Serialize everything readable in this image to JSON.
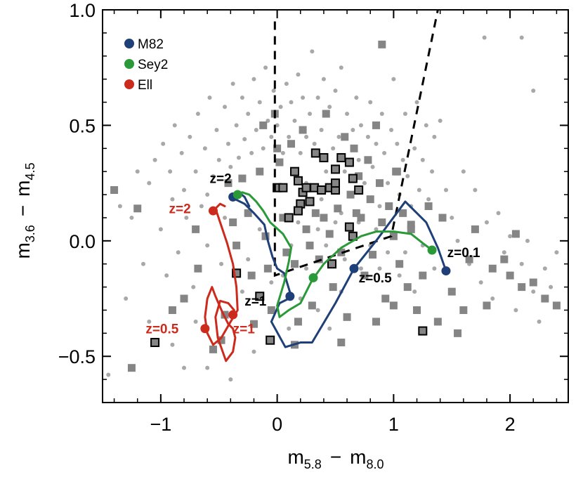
{
  "chart_data": {
    "type": "scatter",
    "title": "",
    "xlabel": {
      "base1": "m",
      "sub1": "5.8",
      "sep": "−",
      "base2": "m",
      "sub2": "8.0"
    },
    "ylabel": {
      "base1": "m",
      "sub1": "3.6",
      "sep": "−",
      "base2": "m",
      "sub2": "4.5"
    },
    "xlim": [
      -1.5,
      2.5
    ],
    "ylim": [
      -0.7,
      1.0
    ],
    "xticks": [
      {
        "v": -1,
        "label": "−1"
      },
      {
        "v": 0,
        "label": "0"
      },
      {
        "v": 1,
        "label": "1"
      },
      {
        "v": 2,
        "label": "2"
      }
    ],
    "yticks": [
      {
        "v": -0.5,
        "label": "−0.5"
      },
      {
        "v": 0.0,
        "label": "0.0"
      },
      {
        "v": 0.5,
        "label": "0.5"
      },
      {
        "v": 1.0,
        "label": "1.0"
      }
    ],
    "colors": {
      "M82": "#1f3f78",
      "Sey2": "#2a9a38",
      "Ell": "#cc2a1c",
      "dots": "#a8a8a8",
      "squares": "#858585",
      "outlined": "#858585"
    },
    "legend": {
      "placement": "top-left",
      "entries": [
        {
          "key": "M82",
          "label": "M82"
        },
        {
          "key": "Sey2",
          "label": "Sey2"
        },
        {
          "key": "Ell",
          "label": "Ell"
        }
      ]
    },
    "wedge": [
      [
        -0.02,
        0.95
      ],
      [
        -0.02,
        -0.15
      ],
      [
        0.98,
        0.02
      ],
      [
        1.38,
        1.0
      ]
    ],
    "series": [
      {
        "name": "M82",
        "key": "M82",
        "x": [
          1.45,
          1.38,
          1.28,
          1.1,
          0.85,
          0.66,
          0.5,
          0.3,
          0.3,
          0.2,
          0.07,
          -0.05,
          0.02,
          0.1,
          0.12,
          0.06,
          0.0,
          -0.04,
          -0.08,
          -0.11,
          -0.2,
          -0.28,
          -0.36,
          -0.37,
          -0.33,
          -0.28,
          -0.24
        ],
        "y": [
          -0.13,
          -0.03,
          0.08,
          0.17,
          0.0,
          -0.12,
          -0.27,
          -0.44,
          -0.44,
          -0.44,
          -0.46,
          -0.35,
          -0.27,
          -0.25,
          -0.24,
          -0.14,
          -0.12,
          -0.07,
          0.0,
          0.07,
          0.12,
          0.16,
          0.18,
          0.2,
          0.21,
          0.19,
          0.15
        ]
      },
      {
        "name": "Sey2",
        "key": "Sey2",
        "x": [
          1.33,
          1.25,
          1.15,
          1.0,
          0.85,
          0.72,
          0.55,
          0.4,
          0.3,
          0.2,
          0.1,
          0.02,
          0.0,
          0.06,
          0.1,
          0.12,
          0.05,
          -0.06,
          -0.12,
          -0.18,
          -0.24,
          -0.3,
          -0.34
        ],
        "y": [
          -0.04,
          -0.01,
          0.03,
          0.04,
          0.04,
          0.02,
          -0.03,
          -0.1,
          -0.17,
          -0.27,
          -0.3,
          -0.33,
          -0.28,
          -0.18,
          -0.09,
          -0.03,
          0.03,
          0.08,
          0.13,
          0.17,
          0.2,
          0.21,
          0.2
        ]
      },
      {
        "name": "Ell",
        "key": "Ell",
        "x": [
          -0.45,
          -0.49,
          -0.53,
          -0.49,
          -0.43,
          -0.38,
          -0.35,
          -0.34,
          -0.4,
          -0.48,
          -0.55,
          -0.6,
          -0.62,
          -0.6,
          -0.56,
          -0.53,
          -0.47,
          -0.42,
          -0.38,
          -0.36,
          -0.38,
          -0.44,
          -0.51,
          -0.53,
          -0.49,
          -0.42,
          -0.37
        ],
        "y": [
          0.15,
          0.16,
          0.14,
          0.08,
          -0.01,
          -0.1,
          -0.2,
          -0.3,
          -0.35,
          -0.42,
          -0.45,
          -0.4,
          -0.33,
          -0.25,
          -0.2,
          -0.24,
          -0.31,
          -0.36,
          -0.38,
          -0.42,
          -0.48,
          -0.52,
          -0.42,
          -0.33,
          -0.26,
          -0.27,
          -0.3
        ]
      }
    ],
    "markers": [
      {
        "series": "M82",
        "x": 1.45,
        "y": -0.13
      },
      {
        "series": "M82",
        "x": 0.66,
        "y": -0.12
      },
      {
        "series": "M82",
        "x": 0.11,
        "y": -0.24
      },
      {
        "series": "M82",
        "x": -0.38,
        "y": 0.19
      },
      {
        "series": "Sey2",
        "x": 1.33,
        "y": -0.04
      },
      {
        "series": "Sey2",
        "x": 0.31,
        "y": -0.16
      },
      {
        "series": "Sey2",
        "x": -0.34,
        "y": 0.2
      },
      {
        "series": "Ell",
        "x": -0.55,
        "y": 0.13
      },
      {
        "series": "Ell",
        "x": -0.62,
        "y": -0.38
      },
      {
        "series": "Ell",
        "x": -0.38,
        "y": -0.32
      }
    ],
    "annotations": [
      {
        "text": "z=2",
        "x": -0.58,
        "y": 0.25,
        "color": "#000000"
      },
      {
        "text": "z=2",
        "x": -0.93,
        "y": 0.12,
        "color": "#cc2a1c"
      },
      {
        "text": "z=0.1",
        "x": 1.46,
        "y": -0.07,
        "color": "#000000"
      },
      {
        "text": "z=0.5",
        "x": 0.7,
        "y": -0.18,
        "color": "#000000"
      },
      {
        "text": "z=1",
        "x": -0.28,
        "y": -0.28,
        "color": "#000000"
      },
      {
        "text": "z=0.5",
        "x": -1.13,
        "y": -0.4,
        "color": "#cc2a1c"
      },
      {
        "text": "z=1",
        "x": -0.38,
        "y": -0.4,
        "color": "#cc2a1c"
      }
    ],
    "squares_outlined": [
      [
        -1.05,
        -0.44
      ],
      [
        -0.35,
        -0.14
      ],
      [
        -0.15,
        -0.24
      ],
      [
        -0.06,
        -0.43
      ],
      [
        0.0,
        0.23
      ],
      [
        0.05,
        0.23
      ],
      [
        0.15,
        0.3
      ],
      [
        0.18,
        0.26
      ],
      [
        0.22,
        0.21
      ],
      [
        0.2,
        0.16
      ],
      [
        0.28,
        0.17
      ],
      [
        0.25,
        0.23
      ],
      [
        0.32,
        0.23
      ],
      [
        0.38,
        0.22
      ],
      [
        0.45,
        0.23
      ],
      [
        0.5,
        0.22
      ],
      [
        0.33,
        0.38
      ],
      [
        0.4,
        0.36
      ],
      [
        0.5,
        0.31
      ],
      [
        0.55,
        0.36
      ],
      [
        0.62,
        0.34
      ],
      [
        0.65,
        0.27
      ],
      [
        0.5,
        0.25
      ],
      [
        0.7,
        0.22
      ],
      [
        0.62,
        0.06
      ],
      [
        0.65,
        0.02
      ],
      [
        0.47,
        -0.1
      ],
      [
        0.18,
        0.13
      ],
      [
        0.1,
        0.1
      ],
      [
        1.25,
        -0.39
      ]
    ],
    "squares_filled": [
      [
        -1.4,
        0.22
      ],
      [
        -1.2,
        0.14
      ],
      [
        -1.25,
        -0.55
      ],
      [
        -0.9,
        -0.3
      ],
      [
        -0.8,
        -0.25
      ],
      [
        -0.7,
        0.05
      ],
      [
        -0.68,
        -0.12
      ],
      [
        -0.55,
        -0.47
      ],
      [
        -0.48,
        -0.43
      ],
      [
        -0.45,
        -0.32
      ],
      [
        -0.42,
        0.25
      ],
      [
        -0.38,
        0.08
      ],
      [
        -0.35,
        -0.02
      ],
      [
        -0.3,
        0.27
      ],
      [
        -0.25,
        0.12
      ],
      [
        -0.22,
        -0.15
      ],
      [
        -0.2,
        -0.36
      ],
      [
        -0.15,
        0.3
      ],
      [
        -0.12,
        0.5
      ],
      [
        -0.1,
        0.02
      ],
      [
        -0.08,
        -0.12
      ],
      [
        -0.05,
        -0.3
      ],
      [
        -0.02,
        0.55
      ],
      [
        0.0,
        0.4
      ],
      [
        0.02,
        0.34
      ],
      [
        0.05,
        0.1
      ],
      [
        0.08,
        -0.05
      ],
      [
        0.12,
        0.42
      ],
      [
        0.15,
        -0.1
      ],
      [
        0.18,
        -0.35
      ],
      [
        0.22,
        0.48
      ],
      [
        0.25,
        0.05
      ],
      [
        0.28,
        -0.02
      ],
      [
        0.3,
        -0.28
      ],
      [
        0.33,
        0.12
      ],
      [
        0.36,
        -0.08
      ],
      [
        0.4,
        0.1
      ],
      [
        0.42,
        0.55
      ],
      [
        0.45,
        0.03
      ],
      [
        0.48,
        -0.2
      ],
      [
        0.52,
        0.14
      ],
      [
        0.55,
        -0.05
      ],
      [
        0.58,
        0.45
      ],
      [
        0.6,
        -0.33
      ],
      [
        0.63,
        0.2
      ],
      [
        0.66,
        0.4
      ],
      [
        0.7,
        0.28
      ],
      [
        0.72,
        0.1
      ],
      [
        0.75,
        -0.15
      ],
      [
        0.78,
        0.35
      ],
      [
        0.8,
        0.18
      ],
      [
        0.82,
        -0.06
      ],
      [
        0.85,
        0.5
      ],
      [
        0.88,
        0.25
      ],
      [
        0.9,
        0.08
      ],
      [
        0.93,
        -0.25
      ],
      [
        0.96,
        0.15
      ],
      [
        1.0,
        0.02
      ],
      [
        1.02,
        0.3
      ],
      [
        1.05,
        -0.1
      ],
      [
        1.08,
        0.12
      ],
      [
        1.12,
        -0.2
      ],
      [
        1.15,
        0.05
      ],
      [
        1.2,
        -0.3
      ],
      [
        1.25,
        -0.15
      ],
      [
        1.3,
        0.15
      ],
      [
        1.38,
        -0.35
      ],
      [
        1.42,
        0.1
      ],
      [
        1.5,
        -0.22
      ],
      [
        1.55,
        -0.4
      ],
      [
        1.6,
        -0.3
      ],
      [
        1.65,
        -0.08
      ],
      [
        1.7,
        0.05
      ],
      [
        1.8,
        -0.28
      ],
      [
        1.85,
        -0.12
      ],
      [
        1.95,
        -0.08
      ],
      [
        2.0,
        -0.15
      ],
      [
        2.05,
        0.03
      ],
      [
        2.1,
        -0.2
      ],
      [
        2.2,
        -0.18
      ],
      [
        2.3,
        -0.25
      ],
      [
        2.4,
        -0.28
      ],
      [
        0.9,
        0.85
      ],
      [
        1.03,
        0.3
      ],
      [
        0.15,
        -0.45
      ],
      [
        0.55,
        -0.44
      ],
      [
        0.85,
        -0.35
      ],
      [
        1.0,
        -0.28
      ],
      [
        1.15,
        0.07
      ],
      [
        0.68,
        0.12
      ]
    ],
    "dots": [
      [
        -1.45,
        -0.58
      ],
      [
        -1.35,
        0.15
      ],
      [
        -1.3,
        -0.25
      ],
      [
        -1.25,
        0.1
      ],
      [
        -1.2,
        0.3
      ],
      [
        -1.15,
        -0.1
      ],
      [
        -1.1,
        0.25
      ],
      [
        -1.05,
        0.35
      ],
      [
        -1.0,
        0.05
      ],
      [
        -0.98,
        0.42
      ],
      [
        -0.95,
        -0.15
      ],
      [
        -0.92,
        0.3
      ],
      [
        -0.9,
        0.18
      ],
      [
        -0.88,
        0.5
      ],
      [
        -0.85,
        -0.05
      ],
      [
        -0.82,
        0.38
      ],
      [
        -0.8,
        0.22
      ],
      [
        -0.78,
        0.1
      ],
      [
        -0.75,
        0.45
      ],
      [
        -0.72,
        -0.2
      ],
      [
        -0.7,
        0.3
      ],
      [
        -0.68,
        0.55
      ],
      [
        -0.65,
        0.15
      ],
      [
        -0.62,
        0.4
      ],
      [
        -0.6,
        -0.02
      ],
      [
        -0.58,
        0.62
      ],
      [
        -0.55,
        0.28
      ],
      [
        -0.52,
        0.48
      ],
      [
        -0.5,
        0.35
      ],
      [
        -0.48,
        -0.1
      ],
      [
        -0.45,
        0.58
      ],
      [
        -0.42,
        0.42
      ],
      [
        -0.4,
        0.32
      ],
      [
        -0.38,
        0.68
      ],
      [
        -0.35,
        0.5
      ],
      [
        -0.33,
        0.36
      ],
      [
        -0.3,
        0.62
      ],
      [
        -0.28,
        0.44
      ],
      [
        -0.25,
        0.55
      ],
      [
        -0.22,
        0.38
      ],
      [
        -0.2,
        0.7
      ],
      [
        -0.18,
        0.48
      ],
      [
        -0.15,
        0.6
      ],
      [
        -0.12,
        0.4
      ],
      [
        -0.1,
        0.75
      ],
      [
        -0.08,
        0.52
      ],
      [
        -0.05,
        0.45
      ],
      [
        -0.03,
        0.65
      ],
      [
        0.0,
        0.5
      ],
      [
        0.03,
        0.58
      ],
      [
        0.05,
        0.38
      ],
      [
        0.08,
        0.68
      ],
      [
        0.1,
        0.45
      ],
      [
        0.12,
        0.6
      ],
      [
        0.15,
        0.52
      ],
      [
        0.18,
        0.72
      ],
      [
        0.2,
        0.38
      ],
      [
        0.22,
        0.62
      ],
      [
        0.25,
        0.45
      ],
      [
        0.28,
        0.55
      ],
      [
        0.3,
        0.82
      ],
      [
        0.32,
        0.42
      ],
      [
        0.35,
        0.62
      ],
      [
        0.38,
        0.48
      ],
      [
        0.4,
        0.7
      ],
      [
        0.42,
        0.3
      ],
      [
        0.45,
        0.58
      ],
      [
        0.48,
        0.4
      ],
      [
        0.5,
        0.65
      ],
      [
        0.53,
        0.45
      ],
      [
        0.55,
        0.75
      ],
      [
        0.58,
        0.3
      ],
      [
        0.6,
        0.55
      ],
      [
        0.62,
        0.2
      ],
      [
        0.65,
        0.48
      ],
      [
        0.68,
        0.62
      ],
      [
        0.7,
        0.35
      ],
      [
        0.72,
        0.5
      ],
      [
        0.75,
        0.25
      ],
      [
        0.78,
        0.45
      ],
      [
        0.8,
        0.6
      ],
      [
        0.82,
        0.32
      ],
      [
        0.85,
        0.42
      ],
      [
        0.88,
        0.15
      ],
      [
        0.9,
        0.55
      ],
      [
        0.92,
        0.38
      ],
      [
        0.95,
        0.25
      ],
      [
        0.98,
        0.48
      ],
      [
        1.0,
        0.7
      ],
      [
        1.03,
        0.42
      ],
      [
        1.05,
        0.2
      ],
      [
        1.08,
        0.35
      ],
      [
        1.1,
        0.55
      ],
      [
        1.12,
        0.28
      ],
      [
        1.15,
        0.15
      ],
      [
        1.18,
        0.4
      ],
      [
        1.2,
        0.6
      ],
      [
        1.22,
        0.22
      ],
      [
        1.25,
        0.35
      ],
      [
        1.28,
        0.5
      ],
      [
        1.3,
        0.18
      ],
      [
        1.33,
        0.3
      ],
      [
        1.35,
        0.45
      ],
      [
        1.4,
        0.52
      ],
      [
        1.45,
        0.22
      ],
      [
        1.5,
        0.1
      ],
      [
        1.55,
        0.0
      ],
      [
        1.6,
        0.3
      ],
      [
        1.65,
        -0.1
      ],
      [
        1.7,
        0.22
      ],
      [
        1.75,
        -0.18
      ],
      [
        1.8,
        0.08
      ],
      [
        1.85,
        -0.25
      ],
      [
        1.9,
        0.12
      ],
      [
        1.95,
        -0.05
      ],
      [
        2.0,
        0.02
      ],
      [
        2.05,
        -0.3
      ],
      [
        2.1,
        -0.1
      ],
      [
        2.15,
        0.0
      ],
      [
        2.2,
        -0.22
      ],
      [
        2.25,
        -0.35
      ],
      [
        2.3,
        -0.12
      ],
      [
        2.35,
        -0.2
      ],
      [
        2.4,
        -0.05
      ],
      [
        1.78,
        0.88
      ],
      [
        2.1,
        0.88
      ],
      [
        2.2,
        0.65
      ],
      [
        -0.6,
        -0.55
      ],
      [
        -0.7,
        -0.35
      ],
      [
        -0.3,
        -0.22
      ],
      [
        -0.25,
        -0.08
      ],
      [
        -0.15,
        0.05
      ],
      [
        0.05,
        -0.15
      ],
      [
        0.12,
        -0.02
      ],
      [
        0.18,
        0.08
      ],
      [
        0.25,
        -0.12
      ],
      [
        0.35,
        0.05
      ],
      [
        0.42,
        -0.02
      ],
      [
        0.5,
        0.08
      ],
      [
        0.58,
        -0.08
      ],
      [
        0.65,
        0.02
      ],
      [
        0.72,
        -0.12
      ],
      [
        0.8,
        -0.02
      ],
      [
        0.88,
        -0.12
      ],
      [
        0.95,
        -0.05
      ],
      [
        1.05,
        -0.15
      ],
      [
        1.1,
        -0.05
      ],
      [
        1.18,
        -0.22
      ],
      [
        1.25,
        -0.02
      ],
      [
        1.35,
        -0.12
      ],
      [
        0.2,
        -0.25
      ],
      [
        0.35,
        -0.3
      ],
      [
        0.45,
        -0.38
      ],
      [
        0.55,
        -0.22
      ],
      [
        0.1,
        -0.38
      ],
      [
        -0.05,
        -0.18
      ],
      [
        -0.9,
        -0.45
      ],
      [
        -1.1,
        -0.35
      ],
      [
        -0.8,
        -0.55
      ],
      [
        -0.4,
        -0.6
      ],
      [
        -0.2,
        -0.48
      ],
      [
        0.25,
        0.25
      ],
      [
        0.38,
        0.18
      ],
      [
        0.55,
        0.12
      ],
      [
        0.7,
        0.08
      ],
      [
        0.85,
        0.05
      ],
      [
        -0.45,
        0.1
      ],
      [
        -0.6,
        0.2
      ]
    ]
  }
}
